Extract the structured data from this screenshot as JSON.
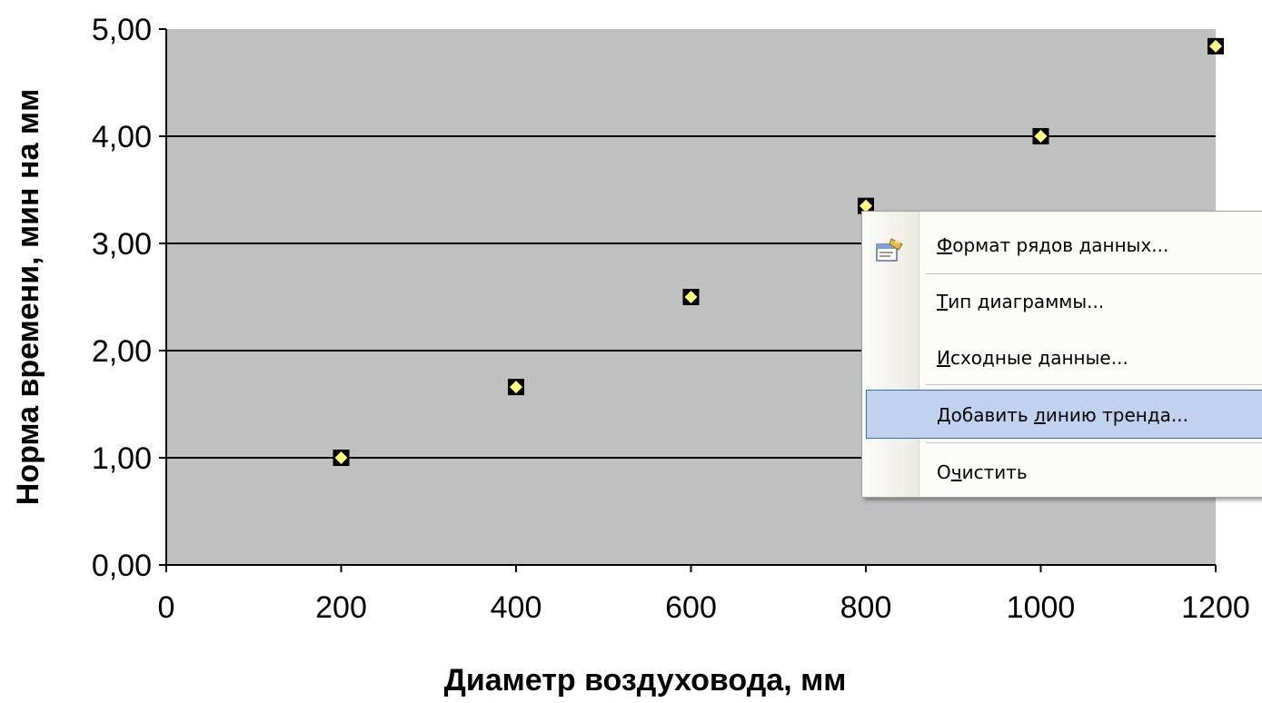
{
  "chart_data": {
    "type": "scatter",
    "xlabel": "Диаметр воздуховода, мм",
    "ylabel": "Норма времени, мин на мм",
    "xlim": [
      0,
      1200
    ],
    "ylim": [
      0,
      5
    ],
    "x_ticks": [
      "0",
      "200",
      "400",
      "600",
      "800",
      "1000",
      "1200"
    ],
    "y_ticks": [
      "0,00",
      "1,00",
      "2,00",
      "3,00",
      "4,00",
      "5,00"
    ],
    "grid": "horizontal",
    "plot_background": "#c0c0c0",
    "marker_color": "#ffff80",
    "series": [
      {
        "x": [
          200,
          400,
          600,
          800,
          1000,
          1200
        ],
        "y": [
          1.0,
          1.66,
          2.5,
          3.35,
          4.0,
          4.84
        ]
      }
    ]
  },
  "context_menu": {
    "items": [
      {
        "label": "Формат рядов данных...",
        "icon": "format-series-icon"
      },
      {
        "label": "Тип диаграммы..."
      },
      {
        "label": "Исходные данные..."
      },
      {
        "label": "Добавить линию тренда...",
        "highlighted": true
      },
      {
        "label": "Очистить"
      }
    ]
  }
}
